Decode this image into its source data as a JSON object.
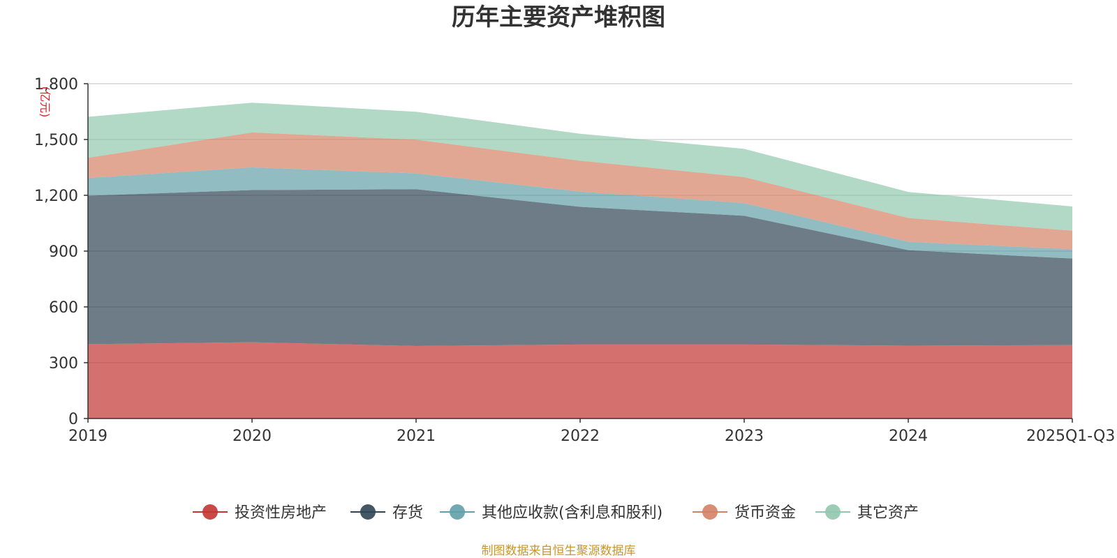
{
  "chart_data": {
    "type": "area",
    "stacked": true,
    "title": "历年主要资产堆积图",
    "unit_label": "(亿元)",
    "categories": [
      "2019",
      "2020",
      "2021",
      "2022",
      "2023",
      "2024",
      "2025Q1-Q3"
    ],
    "ylim": [
      0,
      1800
    ],
    "yticks": [
      0,
      300,
      600,
      900,
      1200,
      1500,
      1800
    ],
    "ytick_labels": [
      "0",
      "300",
      "600",
      "900",
      "1,200",
      "1,500",
      "1,800"
    ],
    "grid": true,
    "legend_position": "bottom-center",
    "series": [
      {
        "name": "投资性房地产",
        "color": "#c23531",
        "values": [
          400,
          410,
          390,
          398,
          398,
          392,
          395
        ]
      },
      {
        "name": "存货",
        "color": "#2f4554",
        "values": [
          798,
          818,
          843,
          740,
          692,
          513,
          465
        ]
      },
      {
        "name": "其他应收款(含利息和股利)",
        "color": "#61a0a8",
        "values": [
          95,
          122,
          85,
          82,
          68,
          45,
          50
        ]
      },
      {
        "name": "货币资金",
        "color": "#d48265",
        "values": [
          109,
          188,
          181,
          166,
          140,
          128,
          100
        ]
      },
      {
        "name": "其它资产",
        "color": "#91c7ae",
        "values": [
          220,
          160,
          150,
          145,
          152,
          140,
          130
        ]
      }
    ],
    "source_note": "制图数据来自恒生聚源数据库"
  }
}
